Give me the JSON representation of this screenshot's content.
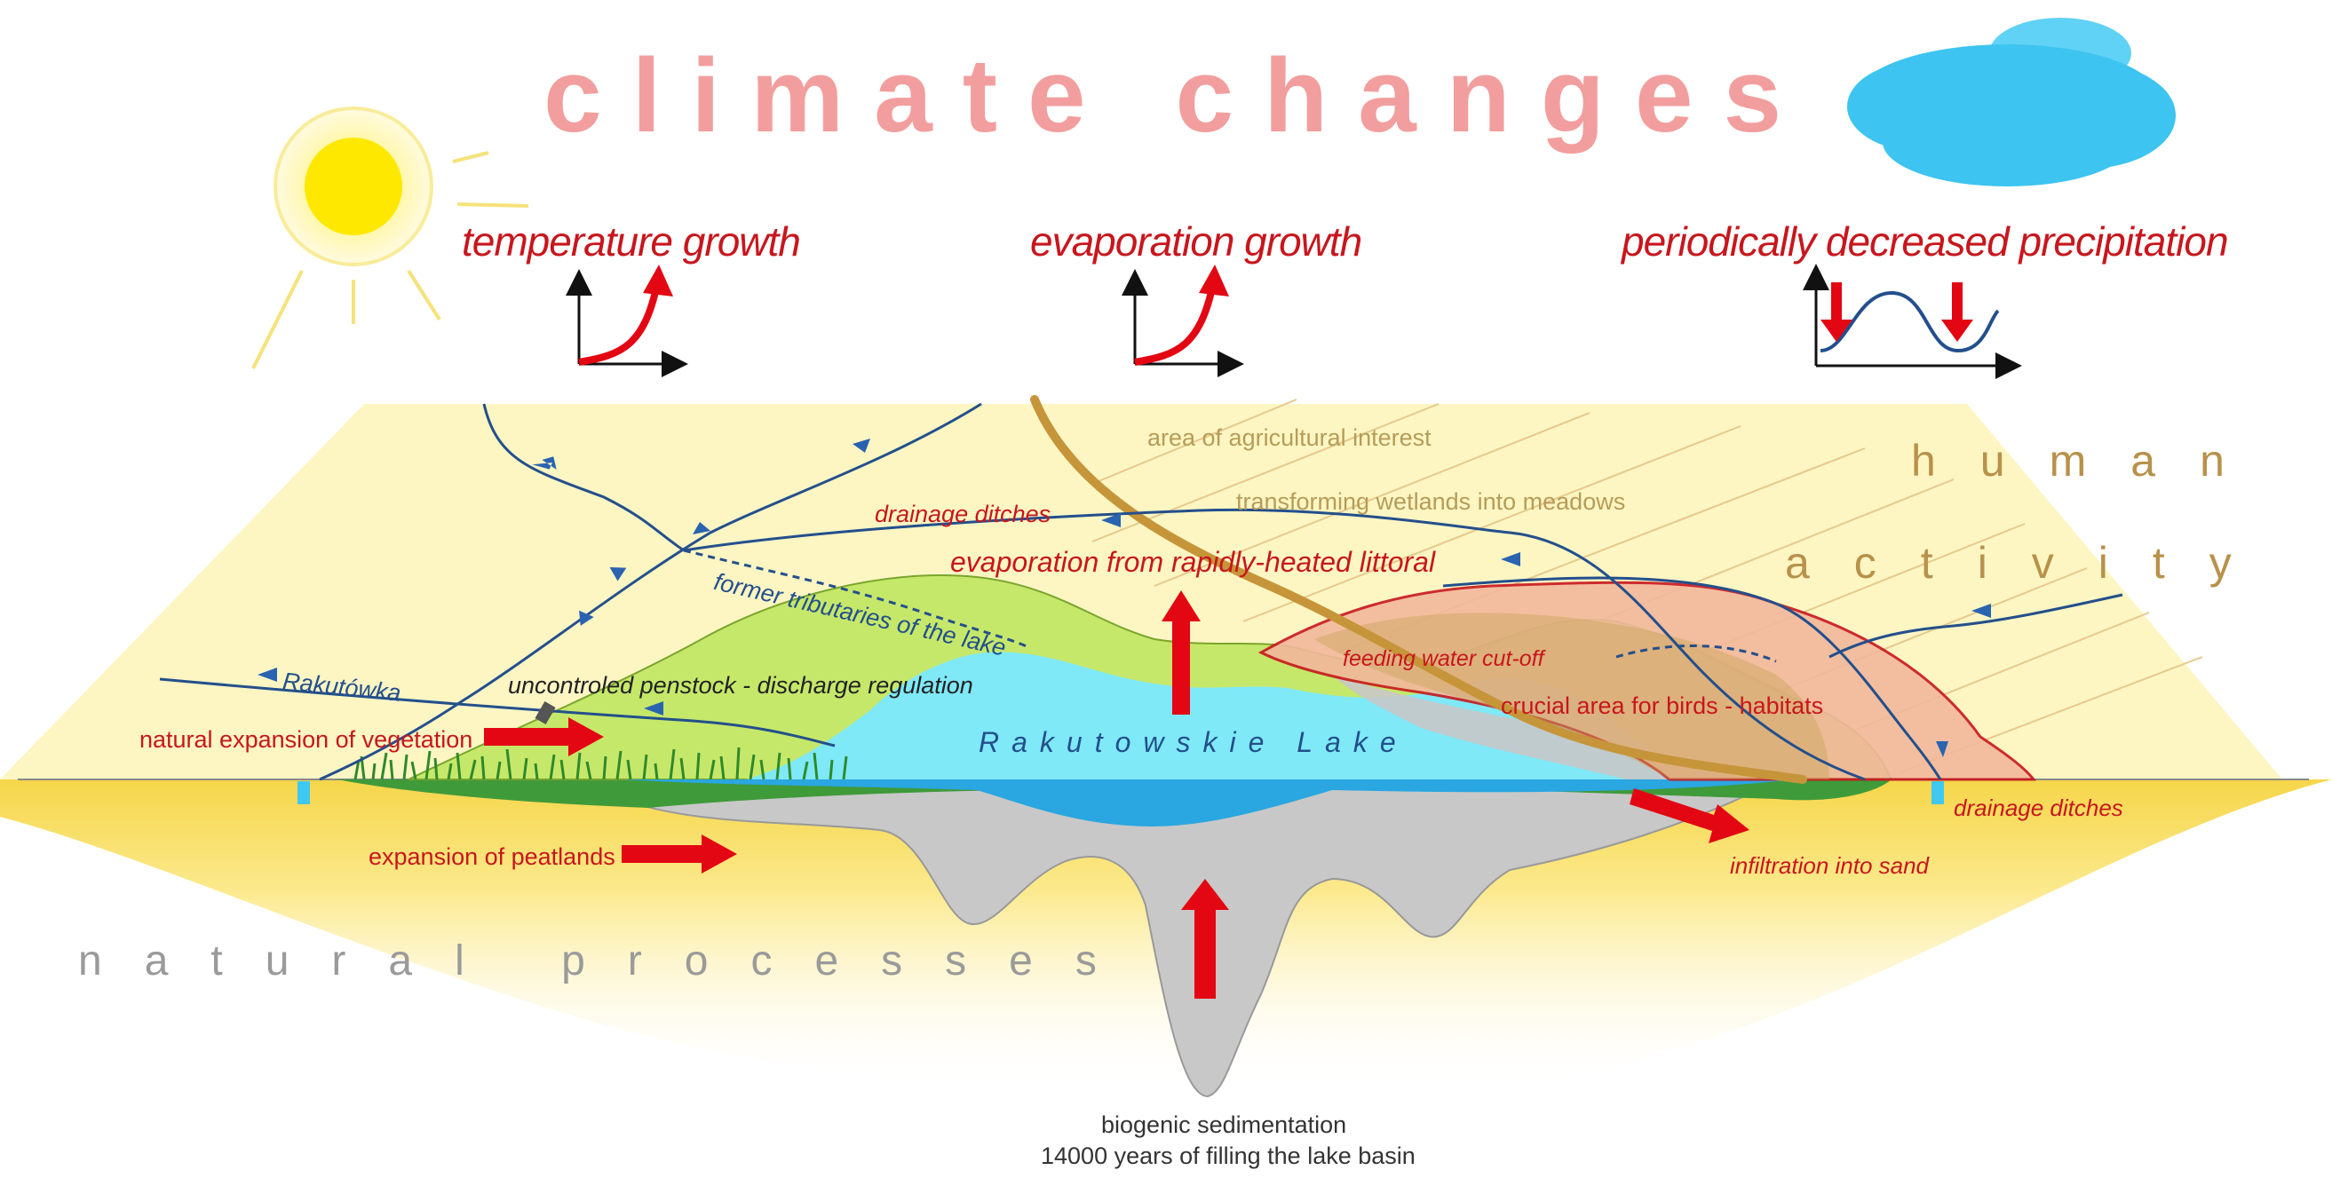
{
  "title": "climate  changes",
  "factors": {
    "temperature": "temperature growth",
    "evaporation": "evaporation growth",
    "precipitation": "periodically decreased precipitation"
  },
  "human_activity": {
    "line1": "human",
    "line2": "activity"
  },
  "natural_processes": "natural processes",
  "labels": {
    "agricultural_area": "area of agricultural interest",
    "transforming_wetlands": "transforming wetlands into meadows",
    "drainage_ditches_top": "drainage ditches",
    "evaporation_littoral": "evaporation from rapidly-heated littoral",
    "former_tributaries": "former tributaries of the lake",
    "feeding_cutoff": "feeding water cut-off",
    "crucial_area": "crucial area for birds - habitats",
    "rakutowka": "Rakutówka",
    "penstock": "uncontroled penstock -  discharge regulation",
    "vegetation": "natural expansion of vegetation",
    "lake": "Rakutowskie Lake",
    "drainage_ditches_right": "drainage ditches",
    "peatlands": "expansion of peatlands",
    "infiltration": "infiltration into sand",
    "sedimentation_line1": "biogenic sedimentation",
    "sedimentation_line2": "14000 years of filling the lake basin"
  },
  "colors": {
    "title": "#f29e9e",
    "red_text": "#c8161d",
    "arrow_red": "#e30613",
    "water": "#7fe9f8",
    "lake_deep": "#2aa6e0",
    "sediment": "#c6c6c6",
    "vegetation": "#c6e86a",
    "peat": "#3f9a3a",
    "background_sand": "#fdf4b8",
    "farmland": "#f2b89c",
    "river_blue": "#234f8c",
    "road_brown": "#c6953a",
    "sun": "#ffe800",
    "cloud": "#3dc4f0"
  }
}
